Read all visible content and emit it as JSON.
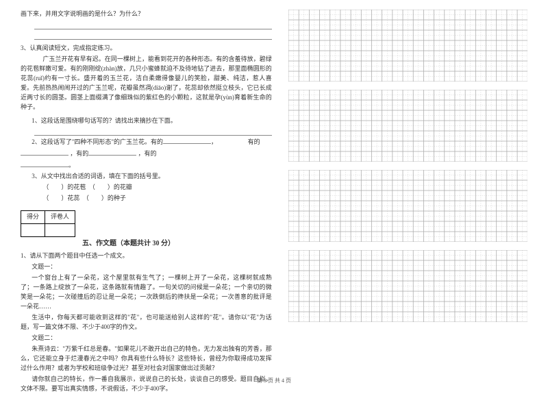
{
  "top": {
    "line1": "画下来，并用文字说明画的是什么？为什么？"
  },
  "q3": {
    "head": "3、认真阅读短文，完成指定练习。",
    "p1": "广玉兰开花有早有迟。在同一棵树上，能看到花开的各种形态。有的含羞待放，碧绿的花苞鲜嫩可爱。有的刚刚绽(zhàn)放，几只小蜜蜂就迫不及待地钻了进去，那里面椭圆形的花蕊(ruǐ)约有一寸长。盛开着的玉兰花，洁白柔嫩得像婴儿的笑脸，甜美、纯洁，惹人喜爱。先前热热闹闹开过的广玉兰呢，花瓣虽然凋(diāo)谢了，花蕊却依然挺立枝头，它已长成近两寸长的圆茎。圆茎上面缀满了像细珠似的紫红色的小颗粒，这就是孕(yùn)育着新生命的种子。",
    "s1": "1、这段话是围绕哪句话写的？请找出来摘抄在下面。",
    "s2a": "2、这段话写了\"四种不同形态\"的广玉兰花。有的",
    "s2b": "有的",
    "s2c": "，有的",
    "s2d": "，有的",
    "s3": "3、从文中找出合适的词语，填在下面的括号里。",
    "s3a": "（　　）的花苞　（　　）的花瓣",
    "s3b": "（　　）花蕊　（　　）的种子"
  },
  "score": {
    "c1": "得分",
    "c2": "评卷人"
  },
  "section5": {
    "title": "五、作文题（本题共计 30 分）",
    "intro": "1、请从下面两个题目中任选一个成文。",
    "t1": "文题一：",
    "t1p1": "一个窗台上有了一朵花，这个屋里就有生气了；一棵树上开了一朵花，这棵树就成熟了；一条路上绽放了一朵花，这条路就有情趣了。一句关切的问候是一朵花；一个亲切的微笑是一朵花；一次碰撞后的忍让是一朵花；一次跌倒后的搀扶是一朵花；一次善意的批评是一朵花……",
    "t1p2": "生活中，你每天都可能收到这样的\"花\"，也可能送给别人这样的\"花\"。请你以\"花\"为话题，写一篇文体不限、不少于400字的作文。",
    "t2": "文题二：",
    "t2p1": "朱熹诗云：\"万紫千红总是春。\"如果花儿不敢开出自己的特色，无力发出独有的芳香，那么，它还能立身于烂漫春光之中吗？你具有些什么特长？这些特长，曾经为你取得成功发挥过什么作用？或者为学校和班级争过光？甚至对社会对国家做出过贡献？",
    "t2p2": "请你就自己的特长，作一番自我展示，说说自己的长处，谈谈自己的感受。题目自拟，文体不限。要写出真实情感，不说假话，不少于400字。"
  },
  "footer": "第 3 页 共 4 页",
  "grid": {
    "rows": 7,
    "cols": 23,
    "line_color": "#aaaaaa",
    "dash_color": "#cccccc",
    "bg": "#ffffff"
  }
}
